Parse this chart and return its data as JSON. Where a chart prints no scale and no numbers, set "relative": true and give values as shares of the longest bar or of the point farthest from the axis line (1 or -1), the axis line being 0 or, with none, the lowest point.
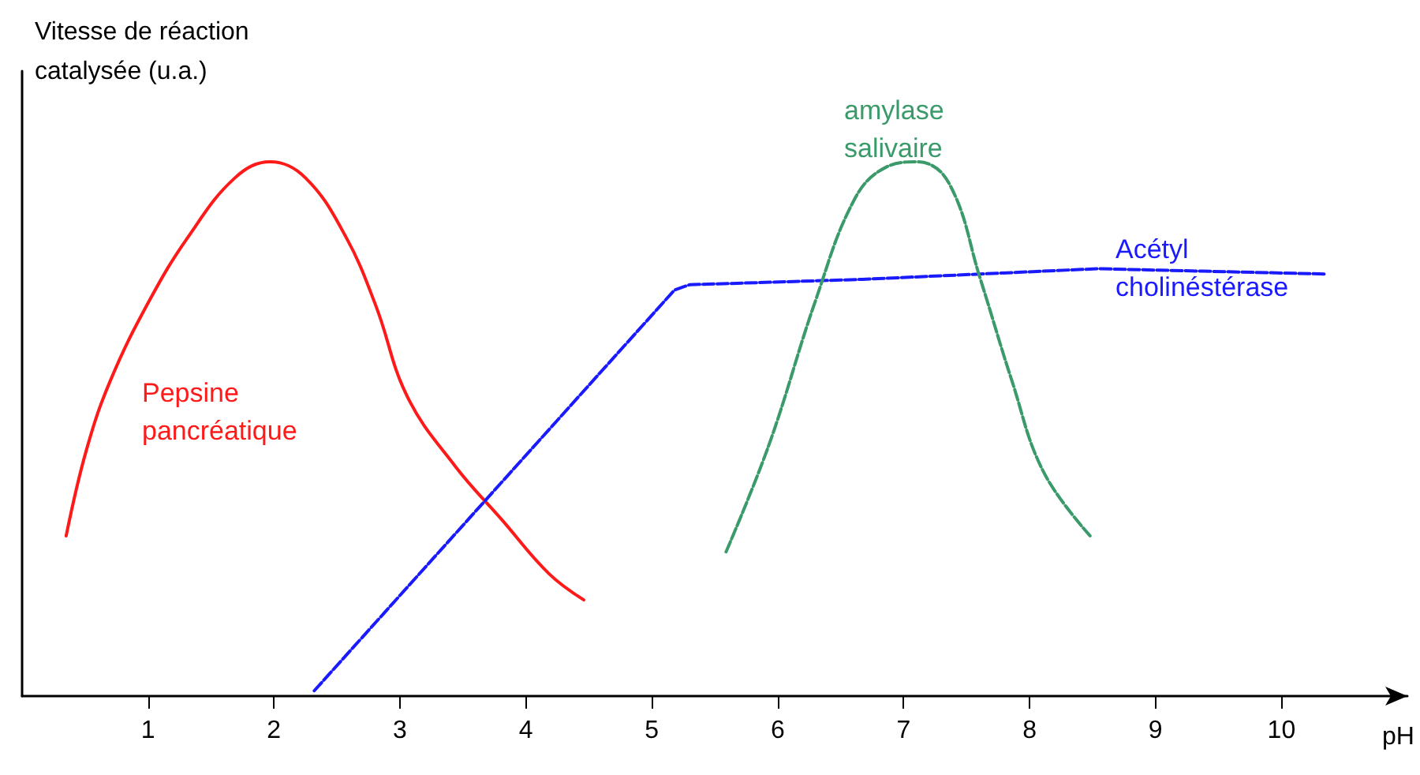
{
  "chart_data": {
    "type": "line",
    "relative": true,
    "ylabel": "Vitesse de réaction catalysée (u.a.)",
    "xlabel": "pH",
    "xlim": [
      0,
      11
    ],
    "xticks": [
      1,
      2,
      3,
      4,
      5,
      6,
      7,
      8,
      9,
      10
    ],
    "grid": false,
    "legend": false,
    "marker": "none",
    "series": [
      {
        "name": "Pepsine pancréatique",
        "color": "#ff1a1a",
        "line_style": "solid",
        "x": [
          0.35,
          0.51,
          0.7,
          1.01,
          1.32,
          1.69,
          1.97,
          2.25,
          2.57,
          2.81,
          3.06,
          3.44,
          3.81,
          4.18,
          4.46
        ],
        "values": [
          0.3,
          0.46,
          0.59,
          0.74,
          0.86,
          0.97,
          1.0,
          0.97,
          0.86,
          0.73,
          0.56,
          0.43,
          0.33,
          0.23,
          0.18
        ]
      },
      {
        "name": "Acétyl cholinéstérase",
        "color": "#1a1aff",
        "line_style": "dashed",
        "x": [
          2.32,
          5.18,
          5.3,
          6.67,
          8.54,
          10.35
        ],
        "values": [
          0.01,
          0.76,
          0.77,
          0.78,
          0.8,
          0.79
        ]
      },
      {
        "name": "amylase salivaire",
        "color": "#3a9a6a",
        "line_style": "dashed",
        "x": [
          5.59,
          5.93,
          6.3,
          6.61,
          6.86,
          7.11,
          7.36,
          7.61,
          7.86,
          8.11,
          8.48
        ],
        "values": [
          0.27,
          0.47,
          0.74,
          0.93,
          0.99,
          1.0,
          0.96,
          0.78,
          0.59,
          0.42,
          0.3
        ]
      }
    ]
  }
}
